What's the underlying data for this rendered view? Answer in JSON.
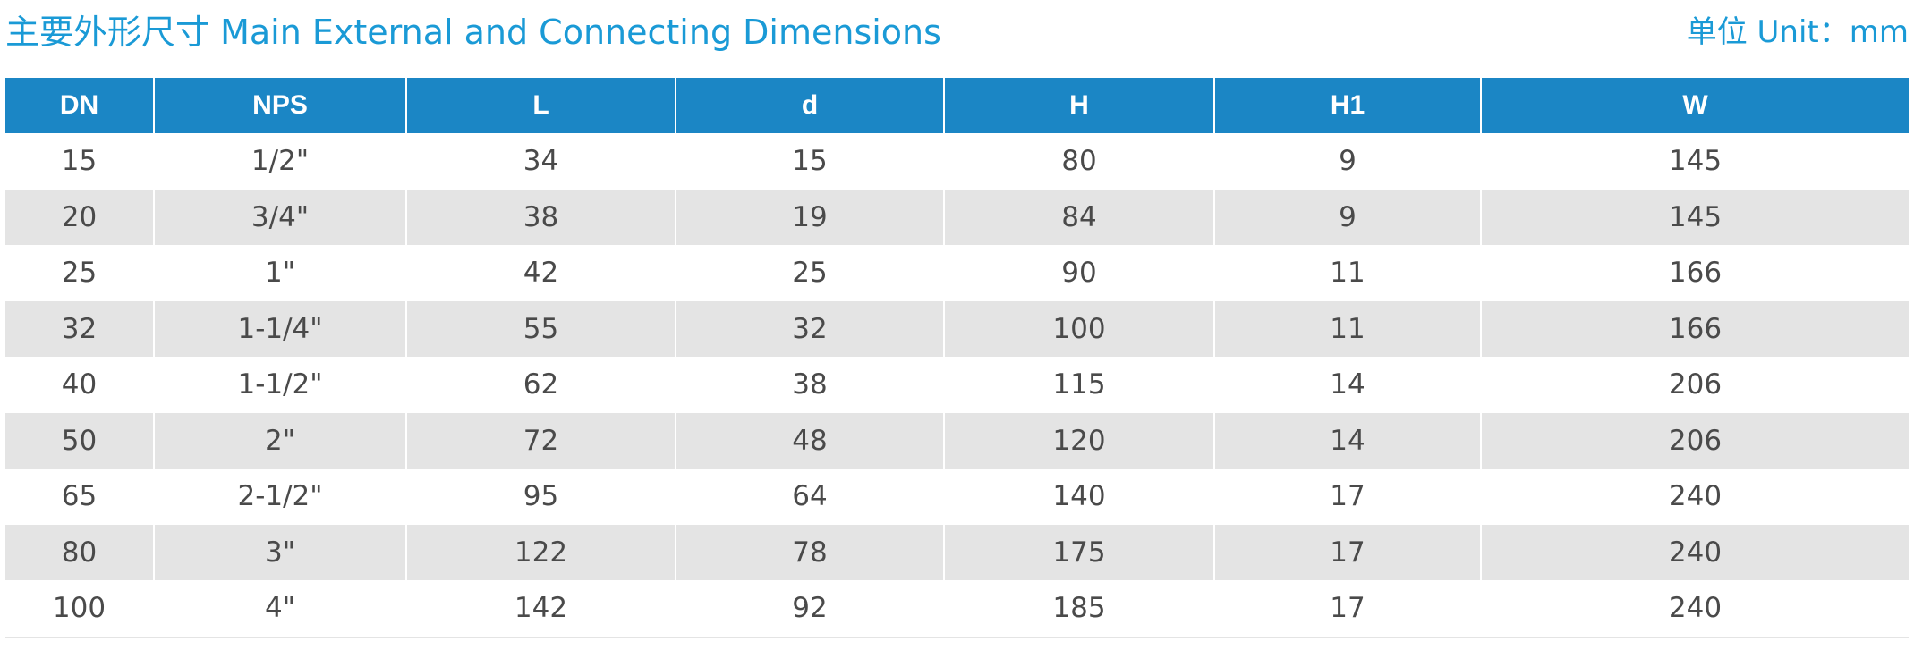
{
  "header": {
    "title": "主要外形尺寸 Main External and Connecting Dimensions",
    "unit": "单位 Unit：mm"
  },
  "colors": {
    "accent": "#1a9ad6",
    "header_bg": "#1b86c5",
    "row_alt_bg": "#e4e4e4",
    "text": "#4a4a4a"
  },
  "table": {
    "columns": [
      "DN",
      "NPS",
      "L",
      "d",
      "H",
      "H1",
      "W"
    ],
    "rows": [
      [
        "15",
        "1/2\"",
        "34",
        "15",
        "80",
        "9",
        "145"
      ],
      [
        "20",
        "3/4\"",
        "38",
        "19",
        "84",
        "9",
        "145"
      ],
      [
        "25",
        "1\"",
        "42",
        "25",
        "90",
        "11",
        "166"
      ],
      [
        "32",
        "1-1/4\"",
        "55",
        "32",
        "100",
        "11",
        "166"
      ],
      [
        "40",
        "1-1/2\"",
        "62",
        "38",
        "115",
        "14",
        "206"
      ],
      [
        "50",
        "2\"",
        "72",
        "48",
        "120",
        "14",
        "206"
      ],
      [
        "65",
        "2-1/2\"",
        "95",
        "64",
        "140",
        "17",
        "240"
      ],
      [
        "80",
        "3\"",
        "122",
        "78",
        "175",
        "17",
        "240"
      ],
      [
        "100",
        "4\"",
        "142",
        "92",
        "185",
        "17",
        "240"
      ]
    ]
  }
}
